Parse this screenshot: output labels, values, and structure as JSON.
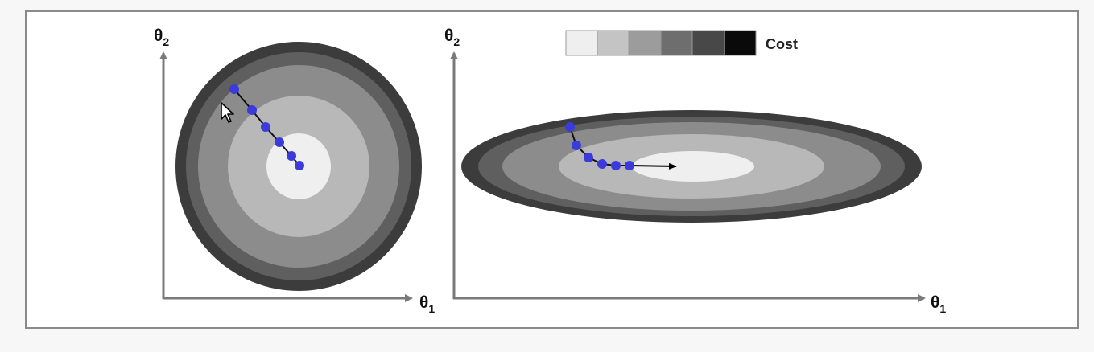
{
  "legend": {
    "label": "Cost",
    "colors": [
      "#efefef",
      "#c4c4c4",
      "#9c9c9c",
      "#6e6e6e",
      "#484848",
      "#0a0a0a"
    ]
  },
  "left_plot": {
    "x_axis": {
      "symbol": "θ",
      "subscript": "1"
    },
    "y_axis": {
      "symbol": "θ",
      "subscript": "2"
    },
    "contour_colors": [
      "#3c3c3c",
      "#5f5f5f",
      "#8c8c8c",
      "#b8b8b8",
      "#efefef"
    ],
    "path_color": "#3b3bdb"
  },
  "right_plot": {
    "x_axis": {
      "symbol": "θ",
      "subscript": "1"
    },
    "y_axis": {
      "symbol": "θ",
      "subscript": "2"
    },
    "contour_colors": [
      "#3c3c3c",
      "#5f5f5f",
      "#8c8c8c",
      "#b8b8b8",
      "#efefef"
    ],
    "path_color": "#3b3bdb",
    "arrow_color": "#000000"
  },
  "cursor": {
    "icon": "mouse-pointer-icon"
  }
}
